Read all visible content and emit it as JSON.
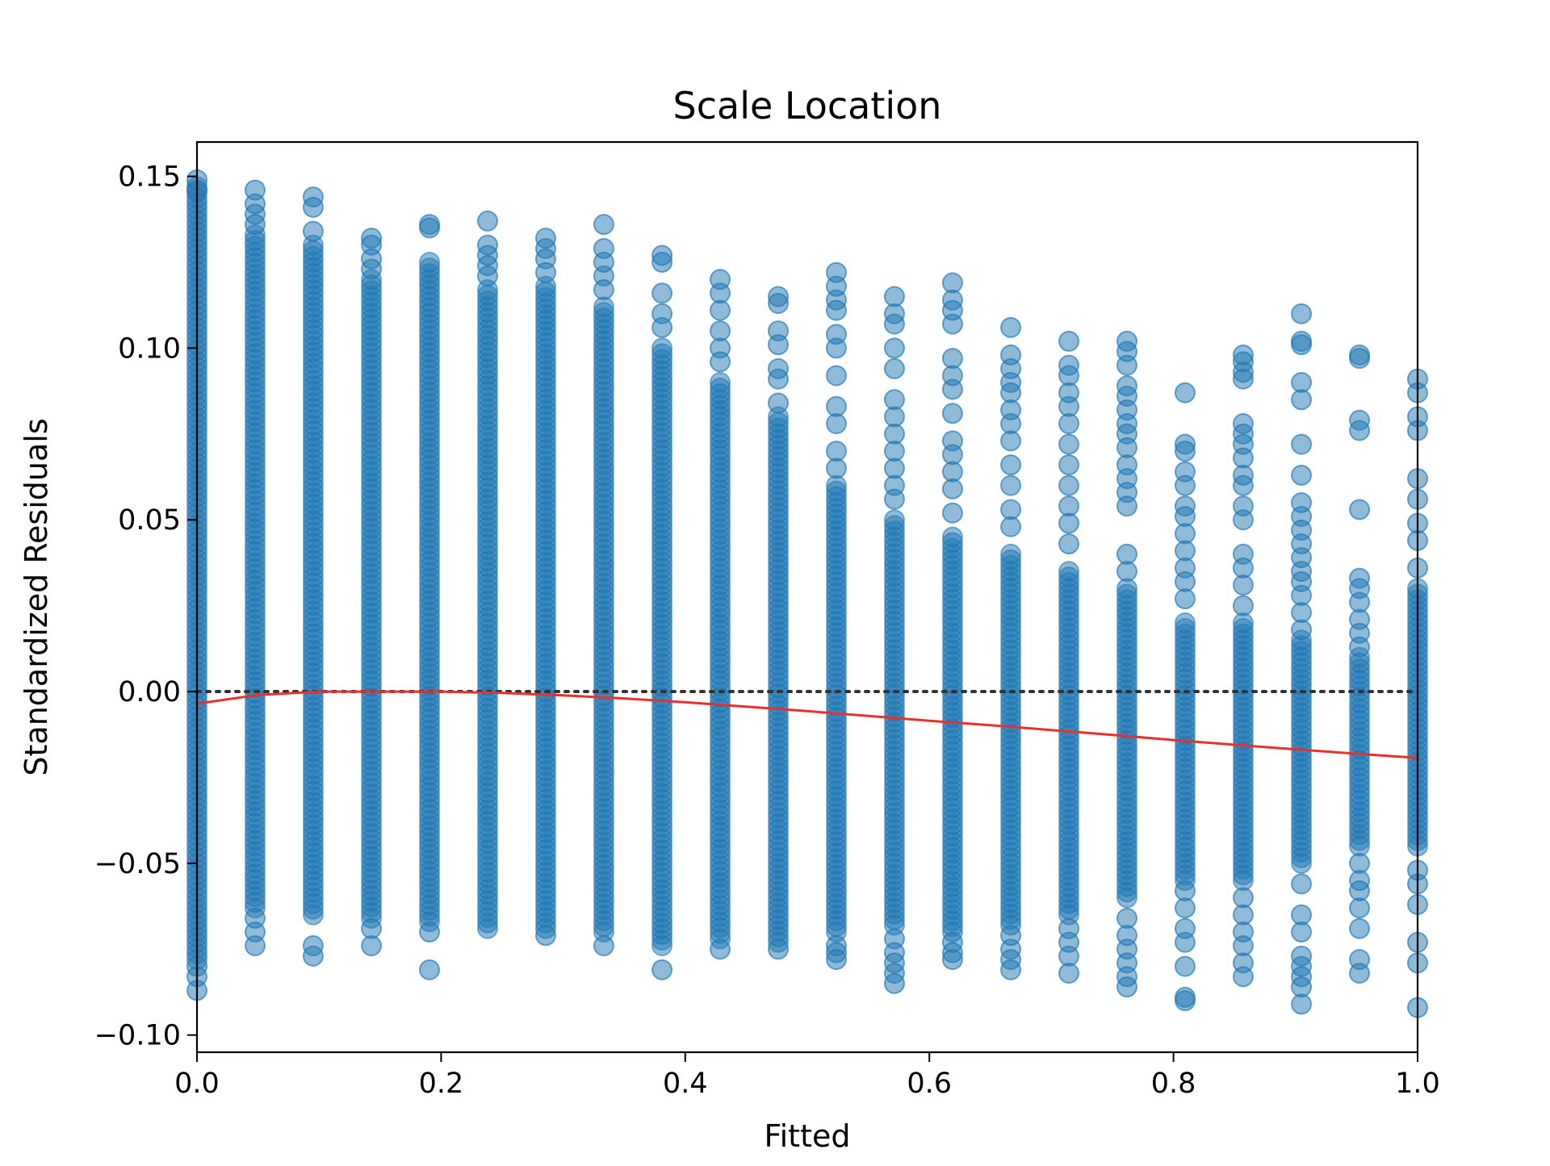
{
  "chart_data": {
    "type": "scatter",
    "title": "Scale Location",
    "xlabel": "Fitted",
    "ylabel": "Standardized Residuals",
    "xlim": [
      0.0,
      1.0
    ],
    "ylim": [
      -0.105,
      0.16
    ],
    "grid": false,
    "x_ticks": [
      0.0,
      0.2,
      0.4,
      0.6,
      0.8,
      1.0
    ],
    "x_tick_labels": [
      "0.0",
      "0.2",
      "0.4",
      "0.6",
      "0.8",
      "1.0"
    ],
    "y_ticks": [
      -0.1,
      -0.05,
      0.0,
      0.05,
      0.1,
      0.15
    ],
    "y_tick_labels": [
      "−0.10",
      "−0.05",
      "0.00",
      "0.05",
      "0.10",
      "0.15"
    ],
    "reference_line": {
      "y": 0.0,
      "style": "dotted",
      "color": "#333333"
    },
    "point_color": "#1f77b4",
    "point_opacity": 0.5,
    "columns": [
      {
        "x": 0.0,
        "dense_min": -0.078,
        "dense_max": 0.147,
        "outliers": [
          0.149,
          0.146,
          -0.08,
          -0.083,
          -0.087
        ]
      },
      {
        "x": 0.0476,
        "dense_min": -0.063,
        "dense_max": 0.133,
        "outliers": [
          0.146,
          0.142,
          0.139,
          0.136,
          -0.066,
          -0.07,
          -0.074
        ]
      },
      {
        "x": 0.0952,
        "dense_min": -0.065,
        "dense_max": 0.13,
        "outliers": [
          0.144,
          0.141,
          0.134,
          -0.074,
          -0.077
        ]
      },
      {
        "x": 0.1429,
        "dense_min": -0.066,
        "dense_max": 0.12,
        "outliers": [
          0.132,
          0.13,
          0.126,
          0.123,
          -0.069,
          -0.074
        ]
      },
      {
        "x": 0.1905,
        "dense_min": -0.067,
        "dense_max": 0.125,
        "outliers": [
          0.136,
          0.135,
          -0.07,
          -0.081
        ]
      },
      {
        "x": 0.2381,
        "dense_min": -0.069,
        "dense_max": 0.117,
        "outliers": [
          0.137,
          0.13,
          0.127,
          0.124,
          0.121
        ]
      },
      {
        "x": 0.2857,
        "dense_min": -0.069,
        "dense_max": 0.118,
        "outliers": [
          0.132,
          0.129,
          0.126,
          0.122,
          -0.071
        ]
      },
      {
        "x": 0.3333,
        "dense_min": -0.07,
        "dense_max": 0.112,
        "outliers": [
          0.136,
          0.129,
          0.125,
          0.121,
          0.117,
          -0.074
        ]
      },
      {
        "x": 0.381,
        "dense_min": -0.074,
        "dense_max": 0.1,
        "outliers": [
          0.127,
          0.125,
          0.116,
          0.11,
          0.106,
          -0.081
        ]
      },
      {
        "x": 0.4286,
        "dense_min": -0.072,
        "dense_max": 0.09,
        "outliers": [
          0.12,
          0.116,
          0.111,
          0.105,
          0.1,
          0.096,
          -0.075
        ]
      },
      {
        "x": 0.4762,
        "dense_min": -0.073,
        "dense_max": 0.08,
        "outliers": [
          0.115,
          0.113,
          0.105,
          0.101,
          0.094,
          0.091,
          0.084,
          -0.075
        ]
      },
      {
        "x": 0.5238,
        "dense_min": -0.07,
        "dense_max": 0.06,
        "outliers": [
          0.122,
          0.118,
          0.114,
          0.111,
          0.104,
          0.1,
          0.092,
          0.083,
          0.078,
          0.07,
          0.065,
          -0.074,
          -0.076,
          -0.078
        ]
      },
      {
        "x": 0.5714,
        "dense_min": -0.068,
        "dense_max": 0.05,
        "outliers": [
          0.115,
          0.11,
          0.107,
          0.1,
          0.094,
          0.085,
          0.08,
          0.075,
          0.07,
          0.065,
          0.06,
          0.056,
          -0.072,
          -0.076,
          -0.079,
          -0.082,
          -0.085
        ]
      },
      {
        "x": 0.619,
        "dense_min": -0.07,
        "dense_max": 0.045,
        "outliers": [
          0.119,
          0.114,
          0.111,
          0.107,
          0.097,
          0.092,
          0.088,
          0.081,
          0.073,
          0.069,
          0.064,
          0.059,
          0.052,
          -0.073,
          -0.076,
          -0.078
        ]
      },
      {
        "x": 0.6667,
        "dense_min": -0.068,
        "dense_max": 0.04,
        "outliers": [
          0.106,
          0.098,
          0.094,
          0.09,
          0.087,
          0.082,
          0.078,
          0.073,
          0.066,
          0.06,
          0.053,
          0.048,
          -0.071,
          -0.075,
          -0.078,
          -0.081
        ]
      },
      {
        "x": 0.7143,
        "dense_min": -0.065,
        "dense_max": 0.035,
        "outliers": [
          0.102,
          0.095,
          0.092,
          0.087,
          0.083,
          0.078,
          0.072,
          0.066,
          0.06,
          0.054,
          0.049,
          0.043,
          -0.069,
          -0.073,
          -0.077,
          -0.082
        ]
      },
      {
        "x": 0.7619,
        "dense_min": -0.06,
        "dense_max": 0.03,
        "outliers": [
          0.102,
          0.099,
          0.095,
          0.089,
          0.086,
          0.082,
          0.078,
          0.075,
          0.071,
          0.066,
          0.062,
          0.058,
          0.054,
          0.04,
          0.035,
          -0.066,
          -0.071,
          -0.075,
          -0.079,
          -0.083,
          -0.086
        ]
      },
      {
        "x": 0.8095,
        "dense_min": -0.055,
        "dense_max": 0.02,
        "outliers": [
          0.087,
          0.072,
          0.07,
          0.064,
          0.06,
          0.054,
          0.051,
          0.046,
          0.041,
          0.036,
          0.032,
          0.027,
          -0.058,
          -0.063,
          -0.069,
          -0.073,
          -0.08,
          -0.089,
          -0.09
        ]
      },
      {
        "x": 0.8571,
        "dense_min": -0.055,
        "dense_max": 0.02,
        "outliers": [
          0.098,
          0.096,
          0.093,
          0.091,
          0.078,
          0.075,
          0.072,
          0.068,
          0.063,
          0.06,
          0.054,
          0.05,
          0.04,
          0.036,
          0.031,
          0.025,
          -0.06,
          -0.065,
          -0.07,
          -0.074,
          -0.079,
          -0.083
        ]
      },
      {
        "x": 0.9048,
        "dense_min": -0.05,
        "dense_max": 0.015,
        "outliers": [
          0.11,
          0.102,
          0.101,
          0.09,
          0.085,
          0.072,
          0.063,
          0.055,
          0.051,
          0.047,
          0.043,
          0.039,
          0.035,
          0.032,
          0.028,
          0.023,
          0.018,
          -0.056,
          -0.065,
          -0.07,
          -0.077,
          -0.08,
          -0.083,
          -0.086,
          -0.091
        ]
      },
      {
        "x": 0.9524,
        "dense_min": -0.045,
        "dense_max": 0.01,
        "outliers": [
          0.098,
          0.097,
          0.079,
          0.076,
          0.053,
          0.033,
          0.03,
          0.026,
          0.021,
          0.017,
          0.013,
          -0.05,
          -0.055,
          -0.058,
          -0.063,
          -0.069,
          -0.078,
          -0.082
        ]
      },
      {
        "x": 1.0,
        "dense_min": -0.045,
        "dense_max": 0.03,
        "outliers": [
          0.091,
          0.087,
          0.08,
          0.076,
          0.062,
          0.056,
          0.049,
          0.044,
          0.036,
          -0.052,
          -0.056,
          -0.062,
          -0.073,
          -0.079,
          -0.092
        ]
      }
    ],
    "lowess": {
      "color": "#e8302c",
      "x": [
        0.0,
        0.05,
        0.1,
        0.15,
        0.2,
        0.25,
        0.3,
        0.35,
        0.4,
        0.45,
        0.5,
        0.55,
        0.6,
        0.65,
        0.7,
        0.75,
        0.8,
        0.85,
        0.9,
        0.95,
        1.0
      ],
      "y": [
        -0.0035,
        -0.001,
        0.0,
        0.0,
        0.0,
        -0.0004,
        -0.0011,
        -0.002,
        -0.0031,
        -0.0044,
        -0.0057,
        -0.0071,
        -0.0085,
        -0.0098,
        -0.0112,
        -0.0126,
        -0.0141,
        -0.0155,
        -0.0168,
        -0.0181,
        -0.0193
      ]
    }
  }
}
